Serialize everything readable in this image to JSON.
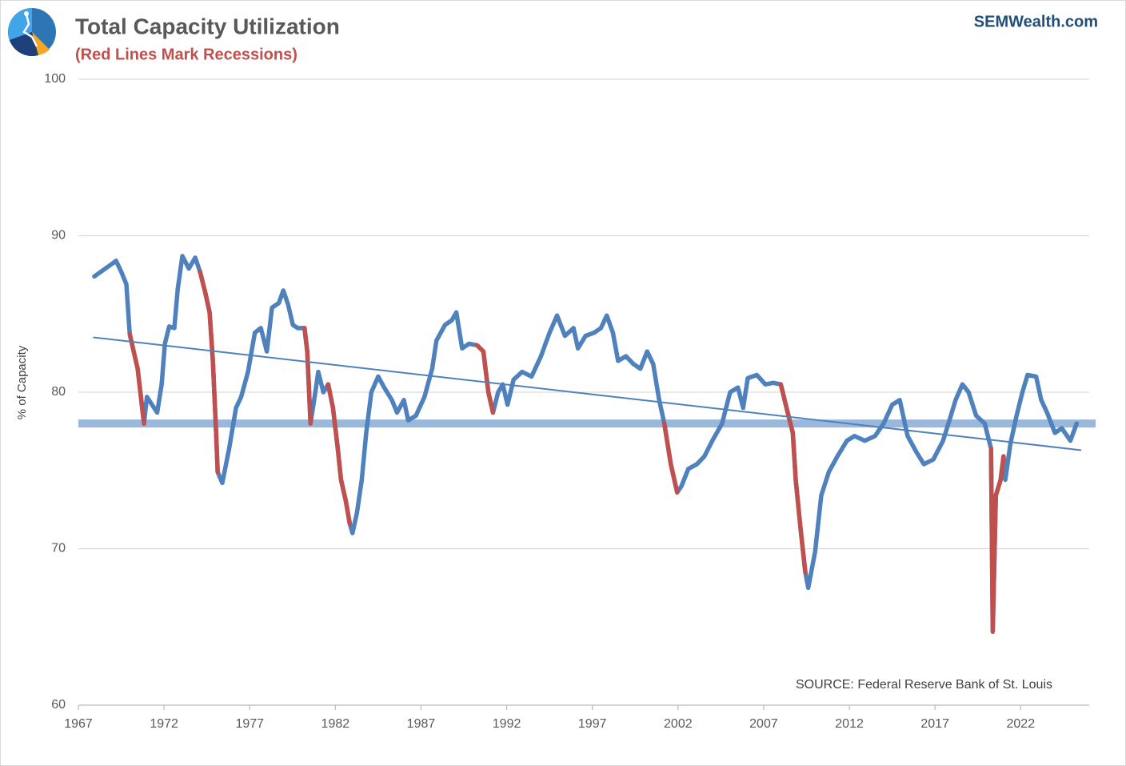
{
  "chart_data": {
    "type": "line",
    "title": "Total Capacity Utilization",
    "subtitle": "(Red Lines Mark Recessions)",
    "brand": "SEMWealth.com",
    "source": "SOURCE:  Federal Reserve Bank of St. Louis",
    "y_label": "% of Capacity",
    "xlim": [
      1967,
      2026
    ],
    "xticks": [
      1967,
      1972,
      1977,
      1982,
      1987,
      1992,
      1997,
      2002,
      2007,
      2012,
      2017,
      2022
    ],
    "ylim": [
      60,
      100
    ],
    "yticks": [
      60,
      70,
      80,
      90,
      100
    ],
    "grid": true,
    "x": [
      1967.93,
      1968.96,
      1969.2,
      1969.5,
      1969.8,
      1970.0,
      1970.46,
      1970.83,
      1971.0,
      1971.3,
      1971.6,
      1971.86,
      1972.05,
      1972.3,
      1972.6,
      1972.8,
      1973.07,
      1973.45,
      1973.82,
      1974.1,
      1974.4,
      1974.66,
      1974.85,
      1975.04,
      1975.13,
      1975.4,
      1975.8,
      1976.2,
      1976.5,
      1976.9,
      1977.3,
      1977.65,
      1978.0,
      1978.3,
      1978.7,
      1978.96,
      1979.24,
      1979.52,
      1979.8,
      1980.2,
      1980.36,
      1980.55,
      1980.83,
      1981.0,
      1981.3,
      1981.58,
      1981.86,
      1982.14,
      1982.33,
      1982.6,
      1982.84,
      1983.0,
      1983.26,
      1983.54,
      1983.8,
      1984.1,
      1984.5,
      1984.85,
      1985.3,
      1985.6,
      1986.0,
      1986.25,
      1986.7,
      1987.2,
      1987.65,
      1987.9,
      1988.4,
      1988.8,
      1989.06,
      1989.4,
      1989.8,
      1990.27,
      1990.64,
      1990.93,
      1991.2,
      1991.5,
      1991.77,
      1992.05,
      1992.4,
      1992.9,
      1993.45,
      1994.0,
      1994.5,
      1994.94,
      1995.4,
      1995.9,
      1996.16,
      1996.6,
      1997.1,
      1997.5,
      1997.84,
      1998.2,
      1998.5,
      1998.96,
      1999.4,
      1999.8,
      2000.2,
      2000.55,
      2000.9,
      2001.2,
      2001.58,
      2001.95,
      2002.2,
      2002.6,
      2003.1,
      2003.54,
      2004.0,
      2004.57,
      2005.04,
      2005.5,
      2005.8,
      2006.07,
      2006.6,
      2007.1,
      2007.56,
      2008.0,
      2008.4,
      2008.7,
      2008.87,
      2009.15,
      2009.43,
      2009.6,
      2010.0,
      2010.36,
      2010.8,
      2011.3,
      2011.86,
      2012.3,
      2012.9,
      2013.5,
      2014.0,
      2014.5,
      2014.94,
      2015.4,
      2015.9,
      2016.35,
      2016.9,
      2017.47,
      2017.84,
      2018.2,
      2018.6,
      2018.96,
      2019.4,
      2019.9,
      2020.27,
      2020.37,
      2020.55,
      2020.83,
      2021.0,
      2021.1,
      2021.4,
      2021.76,
      2022.1,
      2022.4,
      2022.9,
      2023.2,
      2023.54,
      2024.0,
      2024.4,
      2024.9,
      2025.27
    ],
    "series": [
      {
        "color": "#4f81bd",
        "values": [
          87.4,
          88.2,
          88.4,
          87.7,
          86.9,
          83.7,
          81.5,
          78.0,
          79.7,
          79.2,
          78.7,
          80.5,
          83.1,
          84.2,
          84.1,
          86.6,
          88.7,
          87.9,
          88.6,
          87.7,
          86.4,
          85.1,
          82.0,
          77.4,
          74.9,
          74.2,
          76.4,
          79.0,
          79.7,
          81.3,
          83.8,
          84.1,
          82.6,
          85.4,
          85.7,
          86.5,
          85.6,
          84.3,
          84.1,
          84.1,
          82.6,
          78.0,
          80.0,
          81.3,
          80.0,
          80.5,
          79.0,
          76.4,
          74.4,
          73.1,
          71.6,
          71.0,
          72.3,
          74.4,
          77.4,
          80.0,
          81.0,
          80.3,
          79.5,
          78.7,
          79.5,
          78.2,
          78.5,
          79.7,
          81.5,
          83.3,
          84.3,
          84.6,
          85.1,
          82.8,
          83.1,
          83.0,
          82.6,
          80.0,
          78.7,
          80.0,
          80.5,
          79.2,
          80.8,
          81.3,
          81.0,
          82.3,
          83.8,
          84.9,
          83.6,
          84.1,
          82.8,
          83.6,
          83.8,
          84.1,
          84.9,
          83.8,
          82.0,
          82.3,
          81.8,
          81.5,
          82.6,
          81.8,
          79.5,
          78.0,
          75.4,
          73.6,
          74.0,
          75.1,
          75.4,
          75.9,
          76.9,
          78.0,
          80.0,
          80.3,
          79.0,
          80.9,
          81.1,
          80.5,
          80.6,
          80.5,
          78.7,
          77.4,
          74.4,
          71.3,
          68.5,
          67.5,
          69.8,
          73.4,
          74.9,
          75.9,
          76.9,
          77.2,
          76.9,
          77.2,
          78.0,
          79.2,
          79.5,
          77.2,
          76.2,
          75.4,
          75.7,
          76.9,
          78.2,
          79.5,
          80.5,
          80.0,
          78.5,
          78.0,
          76.4,
          64.7,
          73.4,
          74.4,
          75.9,
          74.4,
          76.7,
          78.5,
          80.0,
          81.1,
          81.0,
          79.5,
          78.7,
          77.4,
          77.7,
          76.9,
          78.0
        ]
      },
      {
        "color": "#c0504d",
        "values": [
          null,
          null,
          null,
          null,
          null,
          83.7,
          81.5,
          78.0,
          null,
          null,
          null,
          null,
          null,
          null,
          null,
          null,
          null,
          null,
          null,
          87.7,
          86.4,
          85.1,
          82.0,
          77.4,
          74.9,
          null,
          null,
          null,
          null,
          null,
          null,
          null,
          null,
          null,
          null,
          null,
          null,
          null,
          null,
          84.1,
          82.6,
          78.0,
          null,
          null,
          null,
          80.5,
          79.0,
          76.4,
          74.4,
          73.1,
          71.6,
          null,
          null,
          null,
          null,
          null,
          null,
          null,
          null,
          null,
          null,
          null,
          null,
          null,
          null,
          null,
          null,
          null,
          null,
          null,
          null,
          83.0,
          82.6,
          80.0,
          78.7,
          null,
          null,
          null,
          null,
          null,
          null,
          null,
          null,
          null,
          null,
          null,
          null,
          null,
          null,
          null,
          null,
          null,
          null,
          null,
          null,
          null,
          null,
          null,
          null,
          78.0,
          75.4,
          73.6,
          null,
          null,
          null,
          null,
          null,
          null,
          null,
          null,
          null,
          null,
          null,
          null,
          null,
          80.5,
          78.7,
          77.4,
          74.4,
          71.3,
          68.5,
          null,
          null,
          null,
          null,
          null,
          null,
          null,
          null,
          null,
          null,
          null,
          null,
          null,
          null,
          null,
          null,
          null,
          null,
          null,
          null,
          null,
          null,
          null,
          76.4,
          64.7,
          73.4,
          74.4,
          75.9,
          null,
          null,
          null,
          null,
          null,
          null,
          null,
          null,
          null,
          null,
          null,
          null
        ]
      }
    ],
    "trendline": {
      "color": "#4f81bd",
      "x": [
        1967.9,
        2025.5
      ],
      "values": [
        83.5,
        76.3
      ]
    },
    "reference_band": {
      "color": "#9ab8dc",
      "value": 78
    }
  }
}
